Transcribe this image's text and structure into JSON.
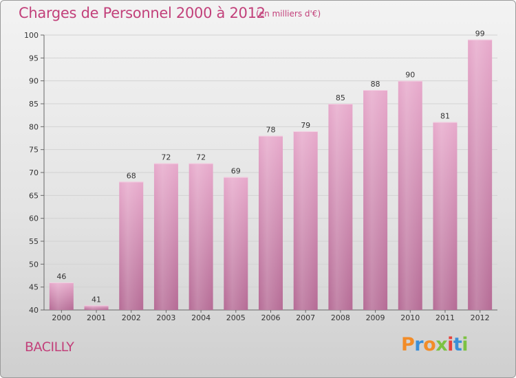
{
  "header": {
    "title": "Charges de Personnel 2000 à 2012",
    "subtitle": "(en milliers d'€)"
  },
  "footer": {
    "place": "BACILLY",
    "logo_text": "Proxiti",
    "logo_colors": [
      "#f28c28",
      "#3a8fd8",
      "#f28c28",
      "#7cc242",
      "#e8423c",
      "#3a8fd8",
      "#7cc242"
    ]
  },
  "colors": {
    "accent": "#c2407a",
    "bar_top": "#e7a9cb",
    "bar_bottom": "#b56b95"
  },
  "chart_data": {
    "type": "bar",
    "title": "Charges de Personnel 2000 à 2012",
    "subtitle": "(en milliers d'€)",
    "categories": [
      "2000",
      "2001",
      "2002",
      "2003",
      "2004",
      "2005",
      "2006",
      "2007",
      "2008",
      "2009",
      "2010",
      "2011",
      "2012"
    ],
    "values": [
      46,
      41,
      68,
      72,
      72,
      69,
      78,
      79,
      85,
      88,
      90,
      81,
      99
    ],
    "ylim": [
      40,
      100
    ],
    "yticks": [
      40,
      45,
      50,
      55,
      60,
      65,
      70,
      75,
      80,
      85,
      90,
      95,
      100
    ],
    "grid": true,
    "data_labels": true
  }
}
